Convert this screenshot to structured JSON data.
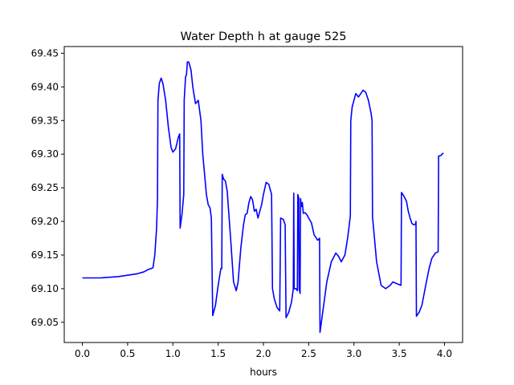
{
  "chart_data": {
    "type": "line",
    "title": "Water Depth h at gauge 525",
    "xlabel": "hours",
    "ylabel": "",
    "xlim": [
      -0.2,
      4.2
    ],
    "ylim": [
      69.02,
      69.46
    ],
    "xticks": [
      0.0,
      0.5,
      1.0,
      1.5,
      2.0,
      2.5,
      3.0,
      3.5,
      4.0
    ],
    "xtick_labels": [
      "0.0",
      "0.5",
      "1.0",
      "1.5",
      "2.0",
      "2.5",
      "3.0",
      "3.5",
      "4.0"
    ],
    "yticks": [
      69.05,
      69.1,
      69.15,
      69.2,
      69.25,
      69.3,
      69.35,
      69.4,
      69.45
    ],
    "ytick_labels": [
      "69.05",
      "69.10",
      "69.15",
      "69.20",
      "69.25",
      "69.30",
      "69.35",
      "69.40",
      "69.45"
    ],
    "grid": false,
    "series": [
      {
        "color": "#0000ff",
        "points": [
          [
            0.0,
            69.116
          ],
          [
            0.2,
            69.116
          ],
          [
            0.4,
            69.118
          ],
          [
            0.6,
            69.122
          ],
          [
            0.68,
            69.125
          ],
          [
            0.72,
            69.128
          ],
          [
            0.78,
            69.131
          ],
          [
            0.8,
            69.15
          ],
          [
            0.82,
            69.19
          ],
          [
            0.83,
            69.235
          ],
          [
            0.835,
            69.38
          ],
          [
            0.85,
            69.405
          ],
          [
            0.87,
            69.413
          ],
          [
            0.89,
            69.405
          ],
          [
            0.92,
            69.38
          ],
          [
            0.95,
            69.34
          ],
          [
            0.98,
            69.31
          ],
          [
            1.0,
            69.303
          ],
          [
            1.03,
            69.308
          ],
          [
            1.06,
            69.325
          ],
          [
            1.075,
            69.33
          ],
          [
            1.08,
            69.19
          ],
          [
            1.1,
            69.21
          ],
          [
            1.12,
            69.24
          ],
          [
            1.125,
            69.38
          ],
          [
            1.14,
            69.415
          ],
          [
            1.15,
            69.418
          ],
          [
            1.16,
            69.437
          ],
          [
            1.175,
            69.437
          ],
          [
            1.2,
            69.425
          ],
          [
            1.22,
            69.4
          ],
          [
            1.25,
            69.375
          ],
          [
            1.28,
            69.38
          ],
          [
            1.31,
            69.35
          ],
          [
            1.33,
            69.3
          ],
          [
            1.37,
            69.24
          ],
          [
            1.39,
            69.225
          ],
          [
            1.41,
            69.22
          ],
          [
            1.425,
            69.205
          ],
          [
            1.44,
            69.06
          ],
          [
            1.47,
            69.075
          ],
          [
            1.5,
            69.105
          ],
          [
            1.53,
            69.13
          ],
          [
            1.54,
            69.13
          ],
          [
            1.545,
            69.27
          ],
          [
            1.56,
            69.263
          ],
          [
            1.58,
            69.26
          ],
          [
            1.6,
            69.245
          ],
          [
            1.64,
            69.17
          ],
          [
            1.67,
            69.11
          ],
          [
            1.7,
            69.097
          ],
          [
            1.72,
            69.11
          ],
          [
            1.75,
            69.16
          ],
          [
            1.78,
            69.195
          ],
          [
            1.8,
            69.21
          ],
          [
            1.82,
            69.212
          ],
          [
            1.84,
            69.228
          ],
          [
            1.86,
            69.237
          ],
          [
            1.88,
            69.232
          ],
          [
            1.9,
            69.215
          ],
          [
            1.92,
            69.218
          ],
          [
            1.94,
            69.205
          ],
          [
            1.96,
            69.215
          ],
          [
            1.98,
            69.225
          ],
          [
            2.0,
            69.24
          ],
          [
            2.03,
            69.258
          ],
          [
            2.06,
            69.255
          ],
          [
            2.09,
            69.24
          ],
          [
            2.1,
            69.1
          ],
          [
            2.12,
            69.085
          ],
          [
            2.15,
            69.072
          ],
          [
            2.18,
            69.067
          ],
          [
            2.19,
            69.205
          ],
          [
            2.22,
            69.203
          ],
          [
            2.24,
            69.195
          ],
          [
            2.25,
            69.057
          ],
          [
            2.28,
            69.065
          ],
          [
            2.31,
            69.08
          ],
          [
            2.33,
            69.1
          ],
          [
            2.335,
            69.242
          ],
          [
            2.34,
            69.1
          ],
          [
            2.36,
            69.1
          ],
          [
            2.375,
            69.097
          ],
          [
            2.38,
            69.24
          ],
          [
            2.39,
            69.235
          ],
          [
            2.395,
            69.1
          ],
          [
            2.405,
            69.093
          ],
          [
            2.41,
            69.234
          ],
          [
            2.42,
            69.222
          ],
          [
            2.43,
            69.228
          ],
          [
            2.44,
            69.212
          ],
          [
            2.46,
            69.213
          ],
          [
            2.48,
            69.21
          ],
          [
            2.5,
            69.205
          ],
          [
            2.53,
            69.198
          ],
          [
            2.56,
            69.18
          ],
          [
            2.6,
            69.172
          ],
          [
            2.62,
            69.175
          ],
          [
            2.625,
            69.035
          ],
          [
            2.64,
            69.05
          ],
          [
            2.67,
            69.08
          ],
          [
            2.7,
            69.11
          ],
          [
            2.75,
            69.14
          ],
          [
            2.8,
            69.153
          ],
          [
            2.83,
            69.148
          ],
          [
            2.86,
            69.14
          ],
          [
            2.9,
            69.15
          ],
          [
            2.93,
            69.175
          ],
          [
            2.96,
            69.208
          ],
          [
            2.965,
            69.35
          ],
          [
            2.98,
            69.37
          ],
          [
            3.0,
            69.38
          ],
          [
            3.02,
            69.39
          ],
          [
            3.05,
            69.385
          ],
          [
            3.1,
            69.395
          ],
          [
            3.13,
            69.392
          ],
          [
            3.16,
            69.38
          ],
          [
            3.19,
            69.36
          ],
          [
            3.2,
            69.35
          ],
          [
            3.205,
            69.207
          ],
          [
            3.25,
            69.14
          ],
          [
            3.3,
            69.105
          ],
          [
            3.35,
            69.1
          ],
          [
            3.4,
            69.105
          ],
          [
            3.43,
            69.11
          ],
          [
            3.48,
            69.107
          ],
          [
            3.52,
            69.105
          ],
          [
            3.525,
            69.243
          ],
          [
            3.55,
            69.238
          ],
          [
            3.58,
            69.23
          ],
          [
            3.6,
            69.215
          ],
          [
            3.62,
            69.205
          ],
          [
            3.64,
            69.197
          ],
          [
            3.66,
            69.195
          ],
          [
            3.68,
            69.196
          ],
          [
            3.685,
            69.2
          ],
          [
            3.69,
            69.059
          ],
          [
            3.72,
            69.065
          ],
          [
            3.75,
            69.075
          ],
          [
            3.8,
            69.11
          ],
          [
            3.83,
            69.13
          ],
          [
            3.86,
            69.145
          ],
          [
            3.9,
            69.153
          ],
          [
            3.93,
            69.155
          ],
          [
            3.935,
            69.297
          ],
          [
            3.96,
            69.298
          ],
          [
            3.98,
            69.301
          ],
          [
            3.99,
            69.301
          ]
        ]
      }
    ]
  }
}
